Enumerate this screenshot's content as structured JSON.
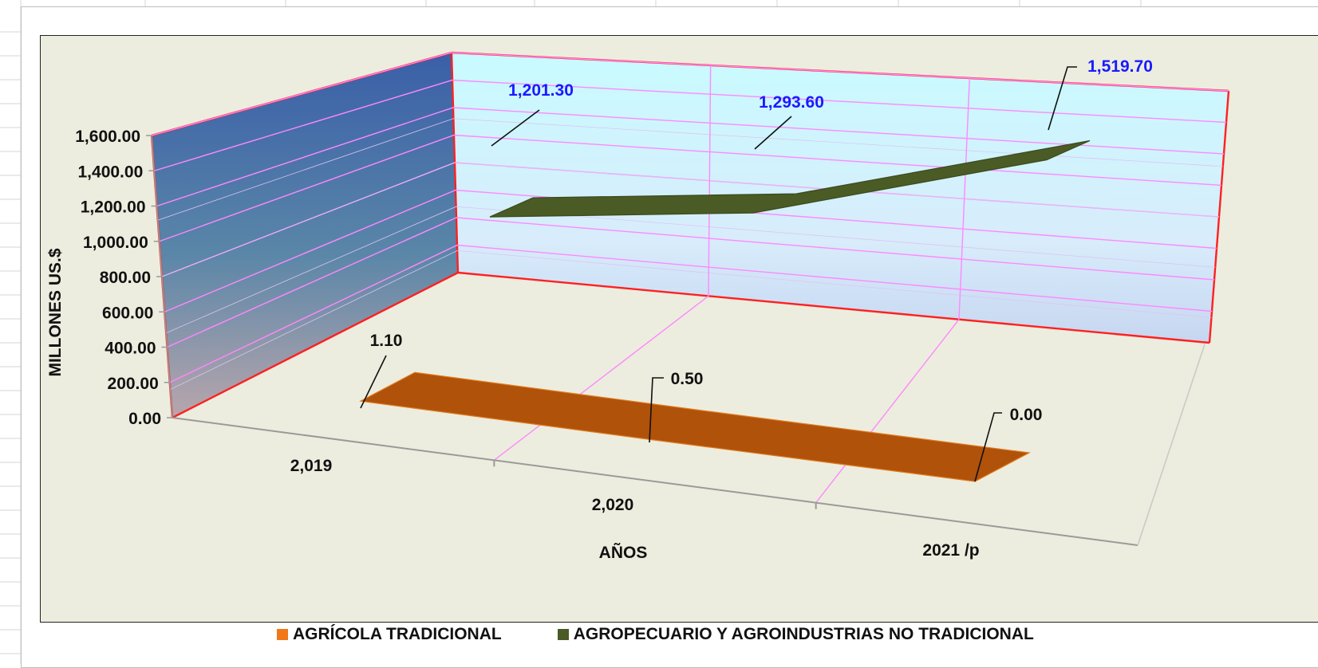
{
  "chart_data": {
    "type": "line",
    "title": "",
    "categories": [
      "2,019",
      "2,020",
      "2021 /p"
    ],
    "xlabel": "AÑOS",
    "ylabel": "MILLONES US.$",
    "ylim": [
      0,
      1600
    ],
    "y_ticks": [
      "0.00",
      "200.00",
      "400.00",
      "600.00",
      "800.00",
      "1,000.00",
      "1,200.00",
      "1,400.00",
      "1,600.00"
    ],
    "grid": true,
    "legend_position": "bottom",
    "style": "3d-line",
    "series": [
      {
        "name": "AGRÍCOLA TRADICIONAL",
        "color": "#b0520a",
        "legend_color": "#f07818",
        "values": [
          1.1,
          0.5,
          0.0
        ],
        "value_labels": [
          "1.10",
          "0.50",
          "0.00"
        ],
        "label_color": "#111111"
      },
      {
        "name": "AGROPECUARIO Y AGROINDUSTRIAS NO TRADICIONAL",
        "color": "#4a5b26",
        "legend_color": "#4a5b26",
        "values": [
          1201.3,
          1293.6,
          1519.7
        ],
        "value_labels": [
          "1,201.30",
          "1,293.60",
          "1,519.70"
        ],
        "label_color": "#1a1aff"
      }
    ]
  },
  "colors": {
    "wall_frame": "#ff2020",
    "gridline": "#ff88ff",
    "floor_axis": "#9a9a9a",
    "left_wall_top": "#3a5fa8",
    "back_wall_top": "#c8fbff",
    "plot_background": "#ecedde"
  }
}
